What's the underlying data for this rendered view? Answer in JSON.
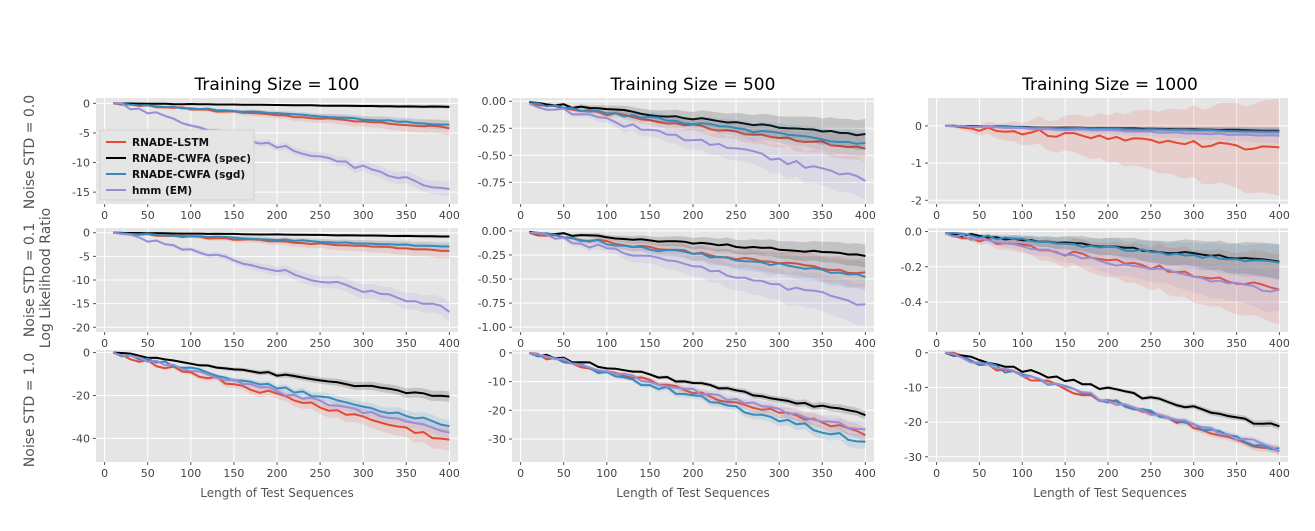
{
  "chart_data": {
    "type": "line",
    "grid": true,
    "style": "ggplot",
    "ylabel": "Log Likelihood Ratio",
    "row_labels": [
      "Noise STD = 0.0",
      "Noise STD = 0.1",
      "Noise STD = 1.0"
    ],
    "column_titles": [
      "Training Size = 100",
      "Training Size = 500",
      "Training Size = 1000"
    ],
    "xlabel": "Length of Test Sequences",
    "xticks": [
      "0",
      "50",
      "100",
      "150",
      "200",
      "250",
      "300",
      "350",
      "400"
    ],
    "xlim": [
      -10,
      410
    ],
    "x": [
      10,
      400
    ],
    "legend": {
      "placement": "left-center",
      "entries": [
        "RNADE-LSTM",
        "RNADE-CWFA (spec)",
        "RNADE-CWFA (sgd)",
        "hmm (EM)"
      ]
    },
    "colors": {
      "RNADE-LSTM": "#E24A33",
      "RNADE-CWFA (spec)": "#000000",
      "RNADE-CWFA (sgd)": "#348ABD",
      "hmm (EM)": "#988ED5",
      "panel_bg": "#E5E5E5",
      "grid": "#FFFFFF"
    },
    "panels": [
      {
        "row": 0,
        "col": 0,
        "ylim": [
          -17,
          0.9
        ],
        "yticks": [
          "0",
          "-5",
          "-10",
          "-15"
        ],
        "yticks_values": [
          0,
          -5,
          -10,
          -15
        ],
        "series": [
          {
            "name": "RNADE-LSTM",
            "values": [
              0,
              -4.1
            ],
            "band": [
              0.0,
              1.2
            ]
          },
          {
            "name": "RNADE-CWFA (spec)",
            "values": [
              0,
              -0.6
            ],
            "band": [
              0.0,
              0.3
            ]
          },
          {
            "name": "RNADE-CWFA (sgd)",
            "values": [
              0,
              -3.6
            ],
            "band": [
              0.0,
              0.8
            ]
          },
          {
            "name": "hmm (EM)",
            "values": [
              0,
              -14.7
            ],
            "band": [
              0.0,
              1.2
            ]
          }
        ]
      },
      {
        "row": 0,
        "col": 1,
        "ylim": [
          -0.95,
          0.03
        ],
        "yticks": [
          "0.00",
          "-0.25",
          "-0.50",
          "-0.75"
        ],
        "yticks_values": [
          0,
          -0.25,
          -0.5,
          -0.75
        ],
        "series": [
          {
            "name": "RNADE-LSTM",
            "values": [
              -0.02,
              -0.44
            ],
            "band": [
              0.0,
              0.12
            ]
          },
          {
            "name": "RNADE-CWFA (spec)",
            "values": [
              -0.01,
              -0.31
            ],
            "band": [
              0.0,
              0.14
            ]
          },
          {
            "name": "RNADE-CWFA (sgd)",
            "values": [
              -0.02,
              -0.4
            ],
            "band": [
              0.0,
              0.12
            ]
          },
          {
            "name": "hmm (EM)",
            "values": [
              -0.02,
              -0.72
            ],
            "band": [
              0.0,
              0.18
            ]
          }
        ]
      },
      {
        "row": 0,
        "col": 2,
        "ylim": [
          -2.1,
          0.75
        ],
        "yticks": [
          "0",
          "-1",
          "-2"
        ],
        "yticks_values": [
          0,
          -1,
          -2
        ],
        "series": [
          {
            "name": "RNADE-LSTM",
            "values": [
              0,
              -0.65
            ],
            "band": [
              0.0,
              1.3
            ]
          },
          {
            "name": "RNADE-CWFA (spec)",
            "values": [
              0,
              -0.13
            ],
            "band": [
              0.0,
              0.1
            ]
          },
          {
            "name": "RNADE-CWFA (sgd)",
            "values": [
              0,
              -0.16
            ],
            "band": [
              0.0,
              0.1
            ]
          },
          {
            "name": "hmm (EM)",
            "values": [
              0,
              -0.27
            ],
            "band": [
              0.0,
              0.2
            ]
          }
        ]
      },
      {
        "row": 1,
        "col": 0,
        "ylim": [
          -21,
          1.0
        ],
        "yticks": [
          "0",
          "-5",
          "-10",
          "-15",
          "-20"
        ],
        "yticks_values": [
          0,
          -5,
          -10,
          -15,
          -20
        ],
        "series": [
          {
            "name": "RNADE-LSTM",
            "values": [
              0,
              -3.8
            ],
            "band": [
              0.0,
              1.6
            ]
          },
          {
            "name": "RNADE-CWFA (spec)",
            "values": [
              0,
              -0.8
            ],
            "band": [
              0.0,
              0.3
            ]
          },
          {
            "name": "RNADE-CWFA (sgd)",
            "values": [
              0,
              -3.0
            ],
            "band": [
              0.0,
              1.0
            ]
          },
          {
            "name": "hmm (EM)",
            "values": [
              0,
              -16.3
            ],
            "band": [
              0.0,
              2.0
            ]
          }
        ]
      },
      {
        "row": 1,
        "col": 1,
        "ylim": [
          -1.05,
          0.03
        ],
        "yticks": [
          "0.00",
          "-0.25",
          "-0.50",
          "-0.75",
          "-1.00"
        ],
        "yticks_values": [
          0,
          -0.25,
          -0.5,
          -0.75,
          -1.0
        ],
        "series": [
          {
            "name": "RNADE-LSTM",
            "values": [
              -0.02,
              -0.44
            ],
            "band": [
              0.0,
              0.15
            ]
          },
          {
            "name": "RNADE-CWFA (spec)",
            "values": [
              -0.01,
              -0.25
            ],
            "band": [
              0.0,
              0.12
            ]
          },
          {
            "name": "RNADE-CWFA (sgd)",
            "values": [
              -0.02,
              -0.47
            ],
            "band": [
              0.0,
              0.15
            ]
          },
          {
            "name": "hmm (EM)",
            "values": [
              -0.02,
              -0.76
            ],
            "band": [
              0.0,
              0.22
            ]
          }
        ]
      },
      {
        "row": 1,
        "col": 2,
        "ylim": [
          -0.57,
          0.02
        ],
        "yticks": [
          "0.0",
          "-0.2",
          "-0.4"
        ],
        "yticks_values": [
          0,
          -0.2,
          -0.4
        ],
        "series": [
          {
            "name": "RNADE-LSTM",
            "values": [
              -0.01,
              -0.32
            ],
            "band": [
              0.0,
              0.2
            ]
          },
          {
            "name": "RNADE-CWFA (spec)",
            "values": [
              -0.01,
              -0.17
            ],
            "band": [
              0.0,
              0.1
            ]
          },
          {
            "name": "RNADE-CWFA (sgd)",
            "values": [
              -0.01,
              -0.18
            ],
            "band": [
              0.0,
              0.1
            ]
          },
          {
            "name": "hmm (EM)",
            "values": [
              -0.01,
              -0.34
            ],
            "band": [
              0.0,
              0.12
            ]
          }
        ]
      },
      {
        "row": 2,
        "col": 0,
        "ylim": [
          -51,
          1.2
        ],
        "yticks": [
          "0",
          "-20",
          "-40"
        ],
        "yticks_values": [
          0,
          -20,
          -40
        ],
        "series": [
          {
            "name": "RNADE-LSTM",
            "values": [
              0,
              -41
            ],
            "band": [
              0.0,
              5.0
            ]
          },
          {
            "name": "RNADE-CWFA (spec)",
            "values": [
              0,
              -21
            ],
            "band": [
              0.0,
              2.5
            ]
          },
          {
            "name": "RNADE-CWFA (sgd)",
            "values": [
              0,
              -33.5
            ],
            "band": [
              0.0,
              3.0
            ]
          },
          {
            "name": "hmm (EM)",
            "values": [
              0,
              -37
            ],
            "band": [
              0.0,
              3.0
            ]
          }
        ]
      },
      {
        "row": 2,
        "col": 1,
        "ylim": [
          -38,
          1.0
        ],
        "yticks": [
          "0",
          "-10",
          "-20",
          "-30"
        ],
        "yticks_values": [
          0,
          -10,
          -20,
          -30
        ],
        "series": [
          {
            "name": "RNADE-LSTM",
            "values": [
              0,
              -28
            ],
            "band": [
              0.0,
              2.5
            ]
          },
          {
            "name": "RNADE-CWFA (spec)",
            "values": [
              0,
              -21.5
            ],
            "band": [
              0.0,
              1.5
            ]
          },
          {
            "name": "RNADE-CWFA (sgd)",
            "values": [
              0,
              -31
            ],
            "band": [
              0.0,
              2.5
            ]
          },
          {
            "name": "hmm (EM)",
            "values": [
              0,
              -27
            ],
            "band": [
              0.0,
              2.5
            ]
          }
        ]
      },
      {
        "row": 2,
        "col": 2,
        "ylim": [
          -31.5,
          0.8
        ],
        "yticks": [
          "0",
          "-10",
          "-20",
          "-30"
        ],
        "yticks_values": [
          0,
          -10,
          -20,
          -30
        ],
        "series": [
          {
            "name": "RNADE-LSTM",
            "values": [
              0,
              -28.5
            ],
            "band": [
              0.0,
              1.2
            ]
          },
          {
            "name": "RNADE-CWFA (spec)",
            "values": [
              0,
              -21.5
            ],
            "band": [
              0.0,
              1.0
            ]
          },
          {
            "name": "RNADE-CWFA (sgd)",
            "values": [
              0,
              -28.2
            ],
            "band": [
              0.0,
              1.0
            ]
          },
          {
            "name": "hmm (EM)",
            "values": [
              0,
              -28.0
            ],
            "band": [
              0.0,
              1.0
            ]
          }
        ]
      }
    ]
  }
}
